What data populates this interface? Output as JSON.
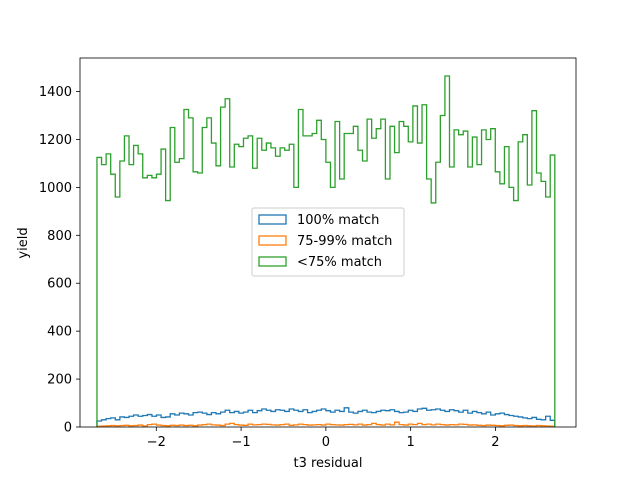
{
  "chart_data": {
    "type": "histogram-step",
    "xlabel": "t3 residual",
    "ylabel": "yield",
    "xlim": [
      -2.9,
      2.95
    ],
    "ylim": [
      0,
      1540
    ],
    "xticks": [
      -2,
      -1,
      0,
      1,
      2
    ],
    "xtick_labels": [
      "−2",
      "−1",
      "0",
      "1",
      "2"
    ],
    "yticks": [
      0,
      200,
      400,
      600,
      800,
      1000,
      1200,
      1400
    ],
    "ytick_labels": [
      "0",
      "200",
      "400",
      "600",
      "800",
      "1000",
      "1200",
      "1400"
    ],
    "bin_edges": [
      -2.7,
      2.7
    ],
    "n_bins": 100,
    "legend_location": "center",
    "series": [
      {
        "name": "100% match",
        "color": "#1f77b4",
        "values": [
          25,
          30,
          35,
          38,
          30,
          42,
          40,
          45,
          50,
          45,
          48,
          52,
          45,
          50,
          40,
          42,
          55,
          50,
          58,
          55,
          50,
          60,
          62,
          58,
          52,
          60,
          55,
          62,
          70,
          60,
          65,
          58,
          62,
          70,
          60,
          68,
          75,
          70,
          65,
          72,
          70,
          65,
          75,
          70,
          65,
          72,
          60,
          65,
          70,
          75,
          68,
          62,
          70,
          65,
          80,
          62,
          58,
          65,
          70,
          62,
          60,
          65,
          70,
          68,
          72,
          65,
          60,
          62,
          70,
          65,
          75,
          78,
          70,
          72,
          75,
          70,
          65,
          72,
          68,
          62,
          70,
          58,
          65,
          60,
          55,
          62,
          50,
          55,
          58,
          52,
          48,
          45,
          42,
          38,
          35,
          40,
          32,
          30,
          45,
          28
        ]
      },
      {
        "name": "75-99% match",
        "color": "#ff7f0e",
        "values": [
          3,
          4,
          5,
          6,
          5,
          6,
          7,
          5,
          6,
          8,
          4,
          10,
          12,
          8,
          6,
          5,
          7,
          6,
          8,
          6,
          7,
          5,
          8,
          10,
          12,
          9,
          8,
          6,
          12,
          15,
          10,
          8,
          7,
          12,
          9,
          10,
          12,
          11,
          9,
          8,
          10,
          12,
          7,
          9,
          12,
          10,
          8,
          9,
          10,
          8,
          12,
          10,
          9,
          8,
          10,
          11,
          9,
          12,
          8,
          10,
          15,
          10,
          8,
          12,
          9,
          20,
          10,
          8,
          12,
          10,
          15,
          10,
          12,
          9,
          12,
          10,
          8,
          10,
          9,
          12,
          11,
          8,
          9,
          7,
          6,
          8,
          7,
          6,
          5,
          7,
          8,
          6,
          5,
          6,
          5,
          4,
          6,
          5,
          4,
          3
        ]
      },
      {
        "name": "<75% match",
        "color": "#2ca02c",
        "values": [
          1125,
          1095,
          1140,
          1055,
          960,
          1110,
          1215,
          1095,
          1175,
          1140,
          1040,
          1050,
          1040,
          1055,
          1160,
          945,
          1250,
          1105,
          1120,
          1325,
          1290,
          1065,
          1060,
          1250,
          1290,
          1185,
          1090,
          1335,
          1370,
          1085,
          1180,
          1170,
          1205,
          1215,
          1080,
          1205,
          1155,
          1185,
          1165,
          1130,
          1165,
          1155,
          1180,
          1000,
          1325,
          1215,
          1215,
          1225,
          1280,
          1200,
          1105,
          1000,
          1275,
          1035,
          1225,
          1225,
          1255,
          1155,
          1110,
          1285,
          1205,
          1245,
          1285,
          1035,
          1255,
          1145,
          1275,
          1255,
          1190,
          1340,
          1185,
          1345,
          1035,
          935,
          1105,
          1300,
          1465,
          1085,
          1240,
          1220,
          1235,
          1085,
          1210,
          1095,
          1240,
          1200,
          1245,
          1065,
          1015,
          1170,
          1000,
          945,
          1190,
          1220,
          1010,
          1320,
          1060,
          1025,
          960,
          1135
        ]
      }
    ]
  }
}
